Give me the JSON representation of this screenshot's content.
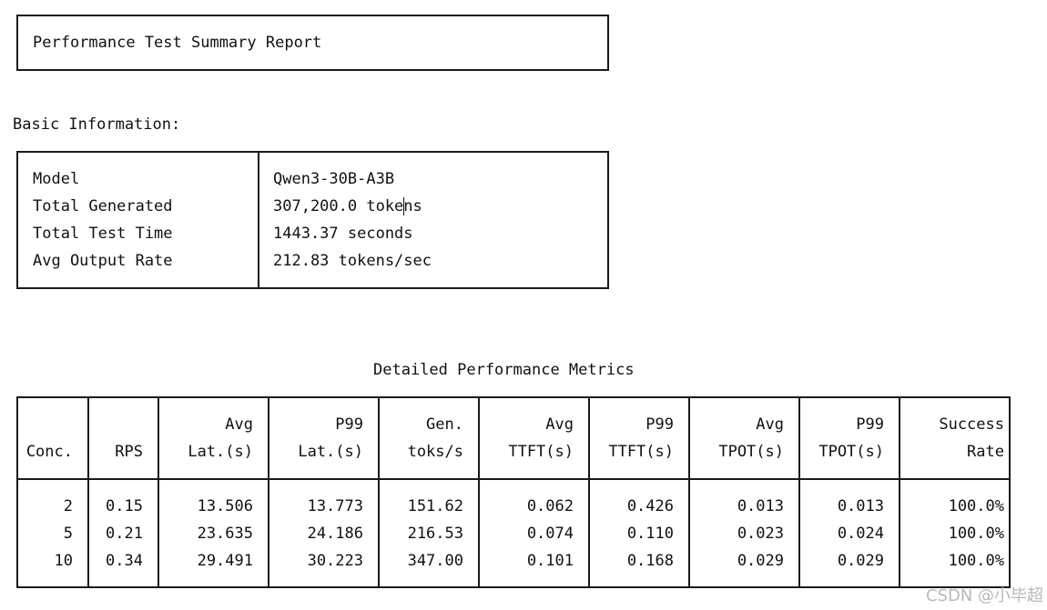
{
  "report_title": "Performance Test Summary Report",
  "basic_info": {
    "heading": "Basic Information:",
    "rows": [
      {
        "label": "Model",
        "value": "Qwen3-30B-A3B"
      },
      {
        "label": "Total Generated",
        "value": "307,200.0 tokens"
      },
      {
        "label": "Total Test Time",
        "value": "1443.37 seconds"
      },
      {
        "label": "Avg Output Rate",
        "value": "212.83 tokens/sec"
      }
    ]
  },
  "metrics": {
    "title": "Detailed Performance Metrics",
    "headers": [
      {
        "line1": "",
        "line2": "Conc."
      },
      {
        "line1": "",
        "line2": "RPS"
      },
      {
        "line1": "Avg",
        "line2": "Lat.(s)"
      },
      {
        "line1": "P99",
        "line2": "Lat.(s)"
      },
      {
        "line1": "Gen.",
        "line2": "toks/s"
      },
      {
        "line1": "Avg",
        "line2": "TTFT(s)"
      },
      {
        "line1": "P99",
        "line2": "TTFT(s)"
      },
      {
        "line1": "Avg",
        "line2": "TPOT(s)"
      },
      {
        "line1": "P99",
        "line2": "TPOT(s)"
      },
      {
        "line1": "Success",
        "line2": "Rate"
      }
    ],
    "rows": [
      [
        "2",
        "0.15",
        "13.506",
        "13.773",
        "151.62",
        "0.062",
        "0.426",
        "0.013",
        "0.013",
        "100.0%"
      ],
      [
        "5",
        "0.21",
        "23.635",
        "24.186",
        "216.53",
        "0.074",
        "0.110",
        "0.023",
        "0.024",
        "100.0%"
      ],
      [
        "10",
        "0.34",
        "29.491",
        "30.223",
        "347.00",
        "0.101",
        "0.168",
        "0.029",
        "0.029",
        "100.0%"
      ]
    ]
  },
  "watermark": "CSDN @小毕超"
}
